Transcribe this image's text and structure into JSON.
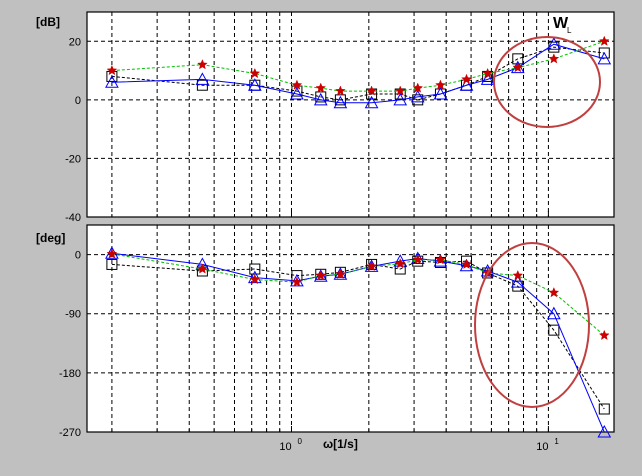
{
  "chart_data": [
    {
      "type": "line",
      "panel": "magnitude",
      "ylabel": "[dB]",
      "xscale": "log",
      "xlim": [
        0.16,
        18
      ],
      "ylim": [
        -40,
        30
      ],
      "yticks": [
        -40,
        -20,
        0,
        20
      ],
      "ytick_labels": [
        "-40",
        "-20",
        "0",
        "20"
      ],
      "grid": true,
      "x": [
        0.2,
        0.45,
        0.72,
        1.05,
        1.3,
        1.55,
        2.05,
        2.65,
        3.1,
        3.8,
        4.8,
        5.8,
        7.6,
        10.5,
        16.5
      ],
      "series": [
        {
          "marker": "square",
          "color": "#000000",
          "linestyle": "dashed",
          "values": [
            8,
            5,
            5,
            3,
            1,
            0,
            2,
            2,
            0,
            2,
            5,
            8,
            14,
            18,
            16
          ]
        },
        {
          "marker": "triangle",
          "color": "#0000ff",
          "linestyle": "solid",
          "values": [
            6,
            7,
            5,
            2,
            0,
            -1,
            -1,
            0,
            1,
            2,
            5,
            7,
            11,
            19,
            14
          ]
        },
        {
          "marker": "star",
          "color": "#00c000",
          "linestyle": "dashed",
          "marker_color": "#cc0000",
          "values": [
            10,
            12,
            9,
            5,
            4,
            3,
            3,
            3,
            4,
            5,
            7,
            9,
            11,
            14,
            20
          ]
        }
      ],
      "annotation": {
        "text": "W",
        "subscript": "L"
      },
      "highlight": {
        "shape": "ellipse",
        "color": "#c04040",
        "x_from": 6.5,
        "x_to": 17
      }
    },
    {
      "type": "line",
      "panel": "phase",
      "ylabel": "[deg]",
      "xlabel": "ω[1/s]",
      "xscale": "log",
      "xlim": [
        0.16,
        18
      ],
      "ylim": [
        -270,
        45
      ],
      "yticks": [
        -270,
        -180,
        -90,
        0
      ],
      "ytick_labels": [
        "-270",
        "-180",
        "-90",
        "0"
      ],
      "xtick_labels": [
        {
          "x": 1,
          "base": "10",
          "exp": "0"
        },
        {
          "x": 10,
          "base": "10",
          "exp": "1"
        }
      ],
      "grid": true,
      "x": [
        0.2,
        0.45,
        0.72,
        1.05,
        1.3,
        1.55,
        2.05,
        2.65,
        3.1,
        3.8,
        4.8,
        5.8,
        7.6,
        10.5,
        16.5
      ],
      "series": [
        {
          "marker": "square",
          "color": "#000000",
          "linestyle": "dashed",
          "values": [
            -15,
            -25,
            -22,
            -32,
            -30,
            -27,
            -15,
            -22,
            -10,
            -12,
            -10,
            -28,
            -48,
            -115,
            -235
          ]
        },
        {
          "marker": "triangle",
          "color": "#0000ff",
          "linestyle": "solid",
          "values": [
            2,
            -15,
            -35,
            -40,
            -33,
            -30,
            -18,
            -10,
            -6,
            -10,
            -17,
            -25,
            -42,
            -90,
            -270
          ]
        },
        {
          "marker": "star",
          "color": "#00c000",
          "linestyle": "dashed",
          "marker_color": "#cc0000",
          "values": [
            1,
            -22,
            -38,
            -42,
            -32,
            -30,
            -18,
            -14,
            -8,
            -8,
            -15,
            -28,
            -32,
            -58,
            -123
          ]
        }
      ],
      "highlight": {
        "shape": "ellipse",
        "color": "#c04040",
        "x_from": 5,
        "x_to": 17
      }
    }
  ]
}
